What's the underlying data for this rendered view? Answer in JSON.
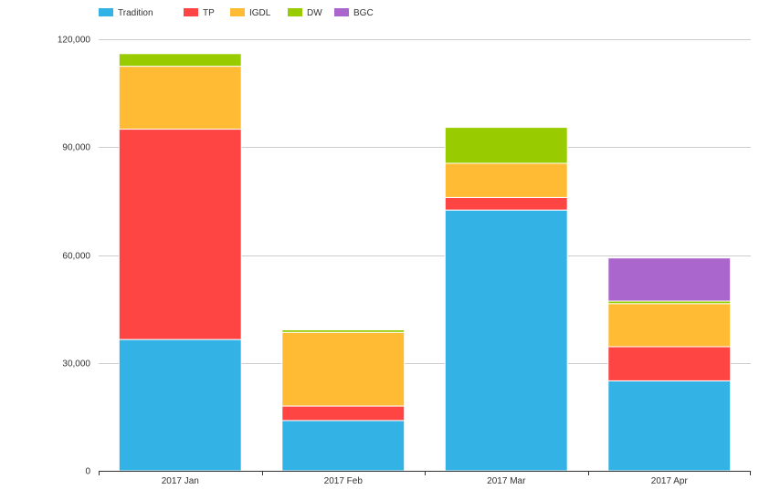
{
  "chart_data": {
    "type": "bar",
    "stacked": true,
    "categories": [
      "2017 Jan",
      "2017 Feb",
      "2017 Mar",
      "2017 Apr"
    ],
    "series": [
      {
        "name": "Tradition",
        "color": "#33b3e5",
        "values": [
          36500,
          14000,
          72500,
          25000
        ]
      },
      {
        "name": "TP",
        "color": "#ff4444",
        "values": [
          58500,
          4000,
          3500,
          9500
        ]
      },
      {
        "name": "IGDL",
        "color": "#ffbb33",
        "values": [
          17500,
          20500,
          9500,
          12000
        ]
      },
      {
        "name": "DW",
        "color": "#99cc00",
        "values": [
          3500,
          700,
          10000,
          700
        ]
      },
      {
        "name": "BGC",
        "color": "#aa66cc",
        "values": [
          0,
          0,
          0,
          12000
        ]
      }
    ],
    "ylim": [
      0,
      120000
    ],
    "yticks": [
      0,
      30000,
      60000,
      90000,
      120000
    ],
    "ytick_labels": [
      "0",
      "30,000",
      "60,000",
      "90,000",
      "120,000"
    ],
    "legend_position": "top-left",
    "grid": true
  }
}
